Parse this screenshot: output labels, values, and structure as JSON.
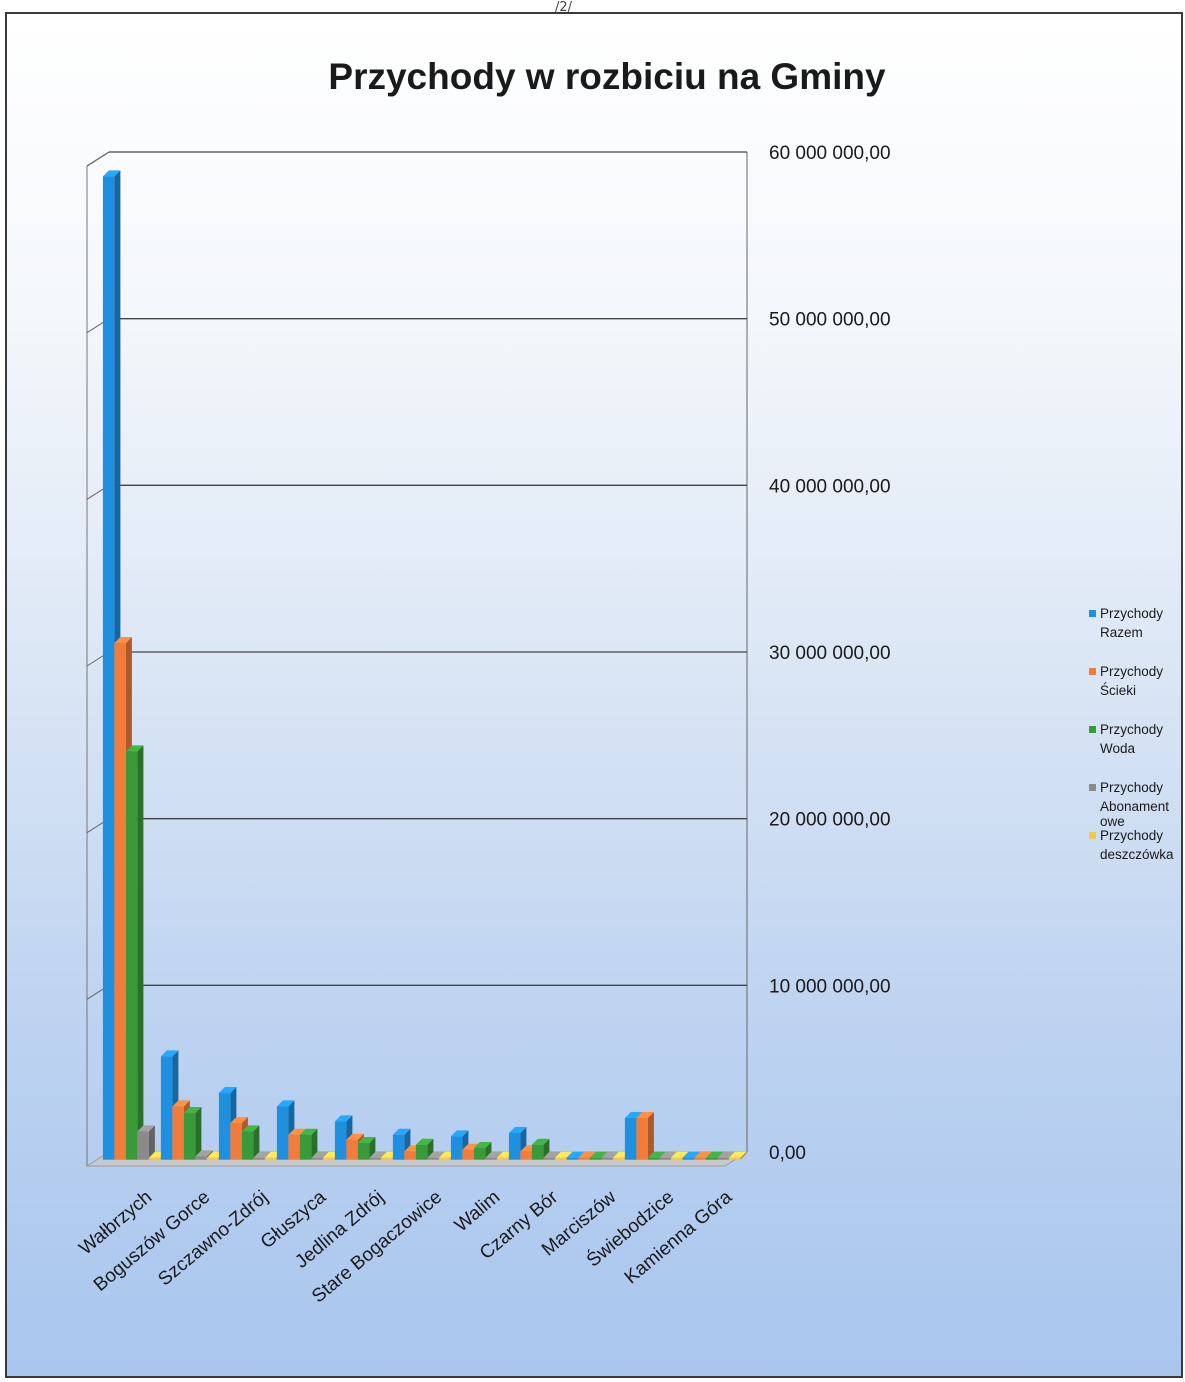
{
  "page_marker": "/2/",
  "colors": {
    "razem": "#1f8fe0",
    "scieki": "#f07b3a",
    "woda": "#3a9a3a",
    "abonamentowe": "#8a8a8a",
    "deszczowka": "#f5c64a"
  },
  "chart_data": {
    "type": "bar",
    "title": "Przychody w rozbiciu na Gminy",
    "categories": [
      "Wałbrzych",
      "Boguszów Gorce",
      "Szczawno-Zdrój",
      "Głuszyca",
      "Jedlina Zdrój",
      "Stare Bogaczowice",
      "Walim",
      "Czarny Bór",
      "Marciszów",
      "Świebodzice",
      "Kamienna Góra"
    ],
    "series": [
      {
        "name": "Przychody Razem",
        "color": "#1f8fe0",
        "values": [
          59000000,
          6200000,
          4000000,
          3200000,
          2300000,
          1500000,
          1400000,
          1600000,
          0,
          2500000,
          0
        ]
      },
      {
        "name": "Przychody Ścieki",
        "color": "#f07b3a",
        "values": [
          31000000,
          3200000,
          2200000,
          1500000,
          1200000,
          500000,
          600000,
          500000,
          0,
          2500000,
          0
        ]
      },
      {
        "name": "Przychody Woda",
        "color": "#3a9a3a",
        "values": [
          24500000,
          2800000,
          1700000,
          1500000,
          1000000,
          900000,
          700000,
          900000,
          0,
          0,
          0
        ]
      },
      {
        "name": "Przychody Abonamentowe",
        "color": "#8a8a8a",
        "values": [
          1700000,
          200000,
          100000,
          100000,
          100000,
          100000,
          100000,
          100000,
          0,
          0,
          0
        ]
      },
      {
        "name": "Przychody deszczówka",
        "color": "#f5c64a",
        "values": [
          0,
          0,
          0,
          0,
          0,
          0,
          0,
          0,
          0,
          0,
          0
        ]
      }
    ],
    "y_ticks": [
      "0,00",
      "10 000 000,00",
      "20 000 000,00",
      "30 000 000,00",
      "40 000 000,00",
      "50 000 000,00",
      "60 000 000,00"
    ],
    "ylim": [
      0,
      60000000
    ],
    "legend": [
      {
        "line1": "Przychody",
        "line2": "Razem",
        "line3": ""
      },
      {
        "line1": "Przychody",
        "line2": "Ścieki",
        "line3": ""
      },
      {
        "line1": "Przychody",
        "line2": "Woda",
        "line3": ""
      },
      {
        "line1": "Przychody",
        "line2": "Abonament",
        "line3": "owe"
      },
      {
        "line1": "Przychody",
        "line2": "deszczówka",
        "line3": ""
      }
    ],
    "legend_position": "right",
    "grid": true
  }
}
